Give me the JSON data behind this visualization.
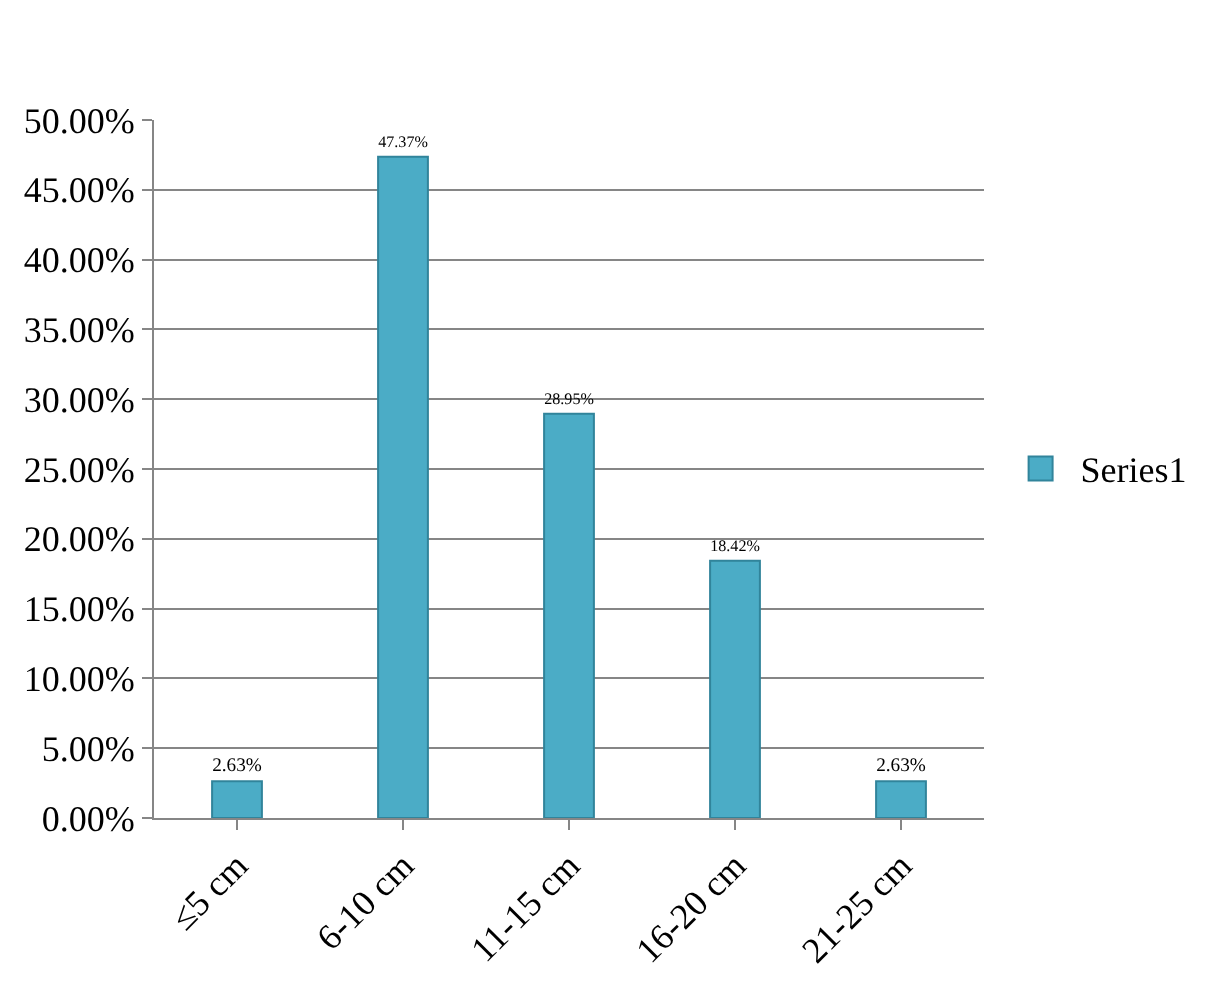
{
  "chart_data": {
    "type": "bar",
    "categories": [
      "≤5 cm",
      "6-10 cm",
      "11-15 cm",
      "16-20 cm",
      "21-25 cm"
    ],
    "series": [
      {
        "name": "Series1",
        "color": "#4bacc6",
        "values": [
          2.63,
          47.37,
          28.95,
          18.42,
          2.63
        ],
        "value_labels": [
          "2.63%",
          "47.37%",
          "28.95%",
          "18.42%",
          "2.63%"
        ]
      }
    ],
    "ylim": [
      0,
      50
    ],
    "yticks": [
      {
        "value": 0,
        "label": "0.00%"
      },
      {
        "value": 5,
        "label": "5.00%"
      },
      {
        "value": 10,
        "label": "10.00%"
      },
      {
        "value": 15,
        "label": "15.00%"
      },
      {
        "value": 20,
        "label": "20.00%"
      },
      {
        "value": 25,
        "label": "25.00%"
      },
      {
        "value": 30,
        "label": "30.00%"
      },
      {
        "value": 35,
        "label": "35.00%"
      },
      {
        "value": 40,
        "label": "40.00%"
      },
      {
        "value": 45,
        "label": "45.00%"
      },
      {
        "value": 50,
        "label": "50.00%"
      }
    ],
    "grid": "y",
    "legend": "right"
  }
}
